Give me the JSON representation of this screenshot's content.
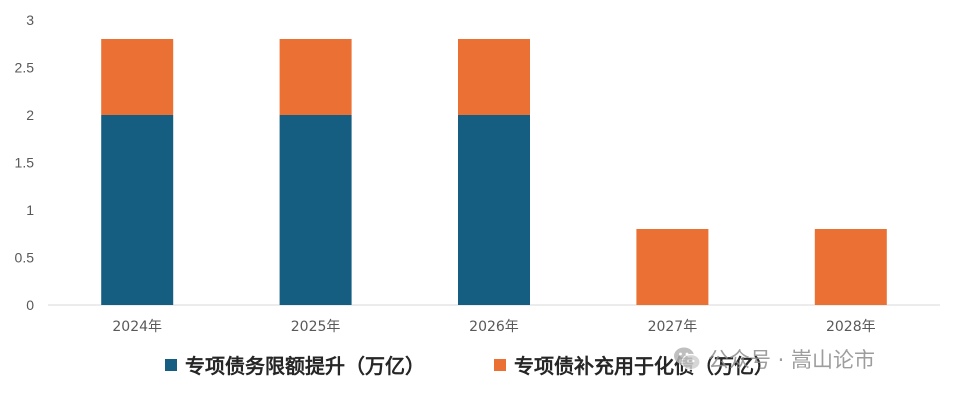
{
  "chart_data": {
    "type": "bar",
    "stacked": true,
    "categories": [
      "2024年",
      "2025年",
      "2026年",
      "2027年",
      "2028年"
    ],
    "series": [
      {
        "name": "专项债务限额提升（万亿）",
        "values": [
          2.0,
          2.0,
          2.0,
          0,
          0
        ],
        "color": "#155e82"
      },
      {
        "name": "专项债补充用于化债（万亿）",
        "values": [
          0.8,
          0.8,
          0.8,
          0.8,
          0.8
        ],
        "color": "#ea7034"
      }
    ],
    "yticks": [
      "0",
      "0.5",
      "1",
      "1.5",
      "2",
      "2.5",
      "3"
    ],
    "ylim": [
      0,
      3
    ],
    "grid": false,
    "legend_position": "bottom"
  },
  "watermark": {
    "text": "公众号 · 嵩山论市",
    "icon": "wechat-icon"
  }
}
